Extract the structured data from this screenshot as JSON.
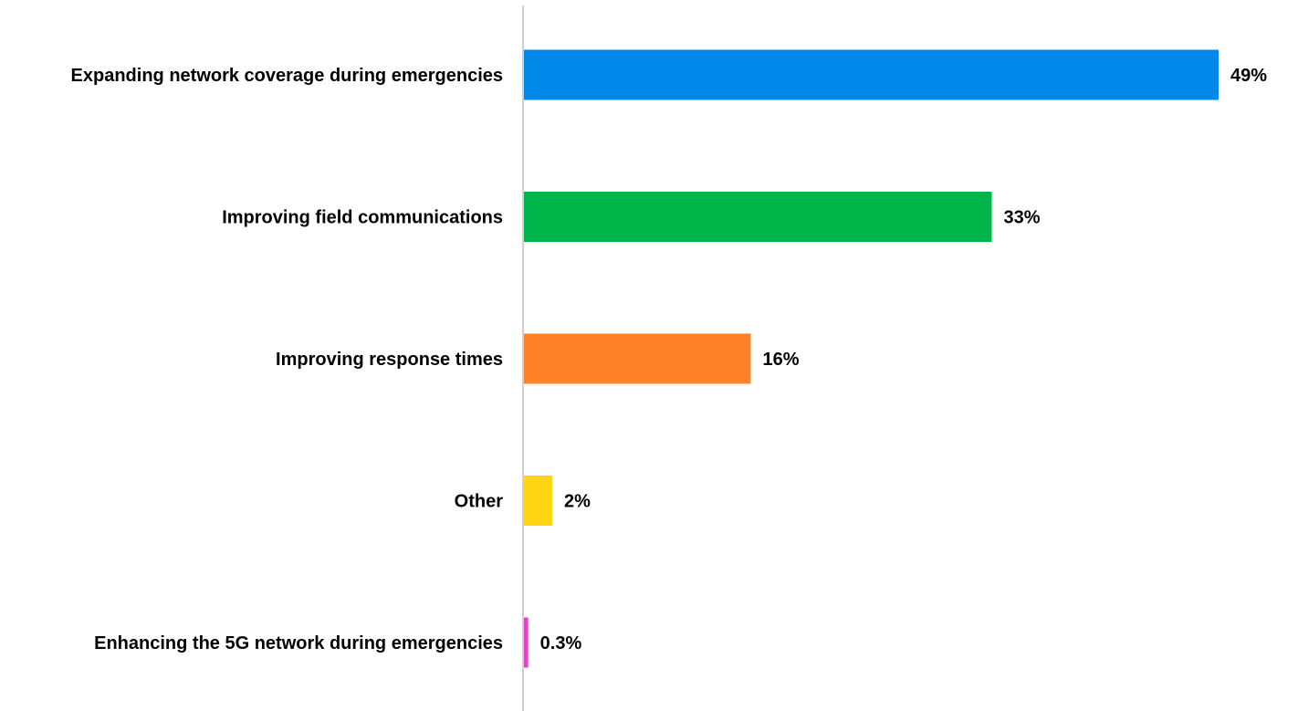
{
  "chart_data": {
    "type": "bar",
    "orientation": "horizontal",
    "title": "",
    "xlabel": "",
    "ylabel": "",
    "categories": [
      "Expanding network coverage during emergencies",
      "Improving field communications",
      "Improving response times",
      "Other",
      "Enhancing the 5G network during emergencies"
    ],
    "values": [
      49,
      33,
      16,
      2,
      0.3
    ],
    "value_labels": [
      "49%",
      "33%",
      "16%",
      "2%",
      "0.3%"
    ],
    "colors": [
      "#0288E8",
      "#00B64B",
      "#FF8228",
      "#FFD412",
      "#E844C2"
    ],
    "xlim": [
      0,
      49
    ],
    "grid": false,
    "legend": "none",
    "axis_color": "#D0D0D0"
  }
}
